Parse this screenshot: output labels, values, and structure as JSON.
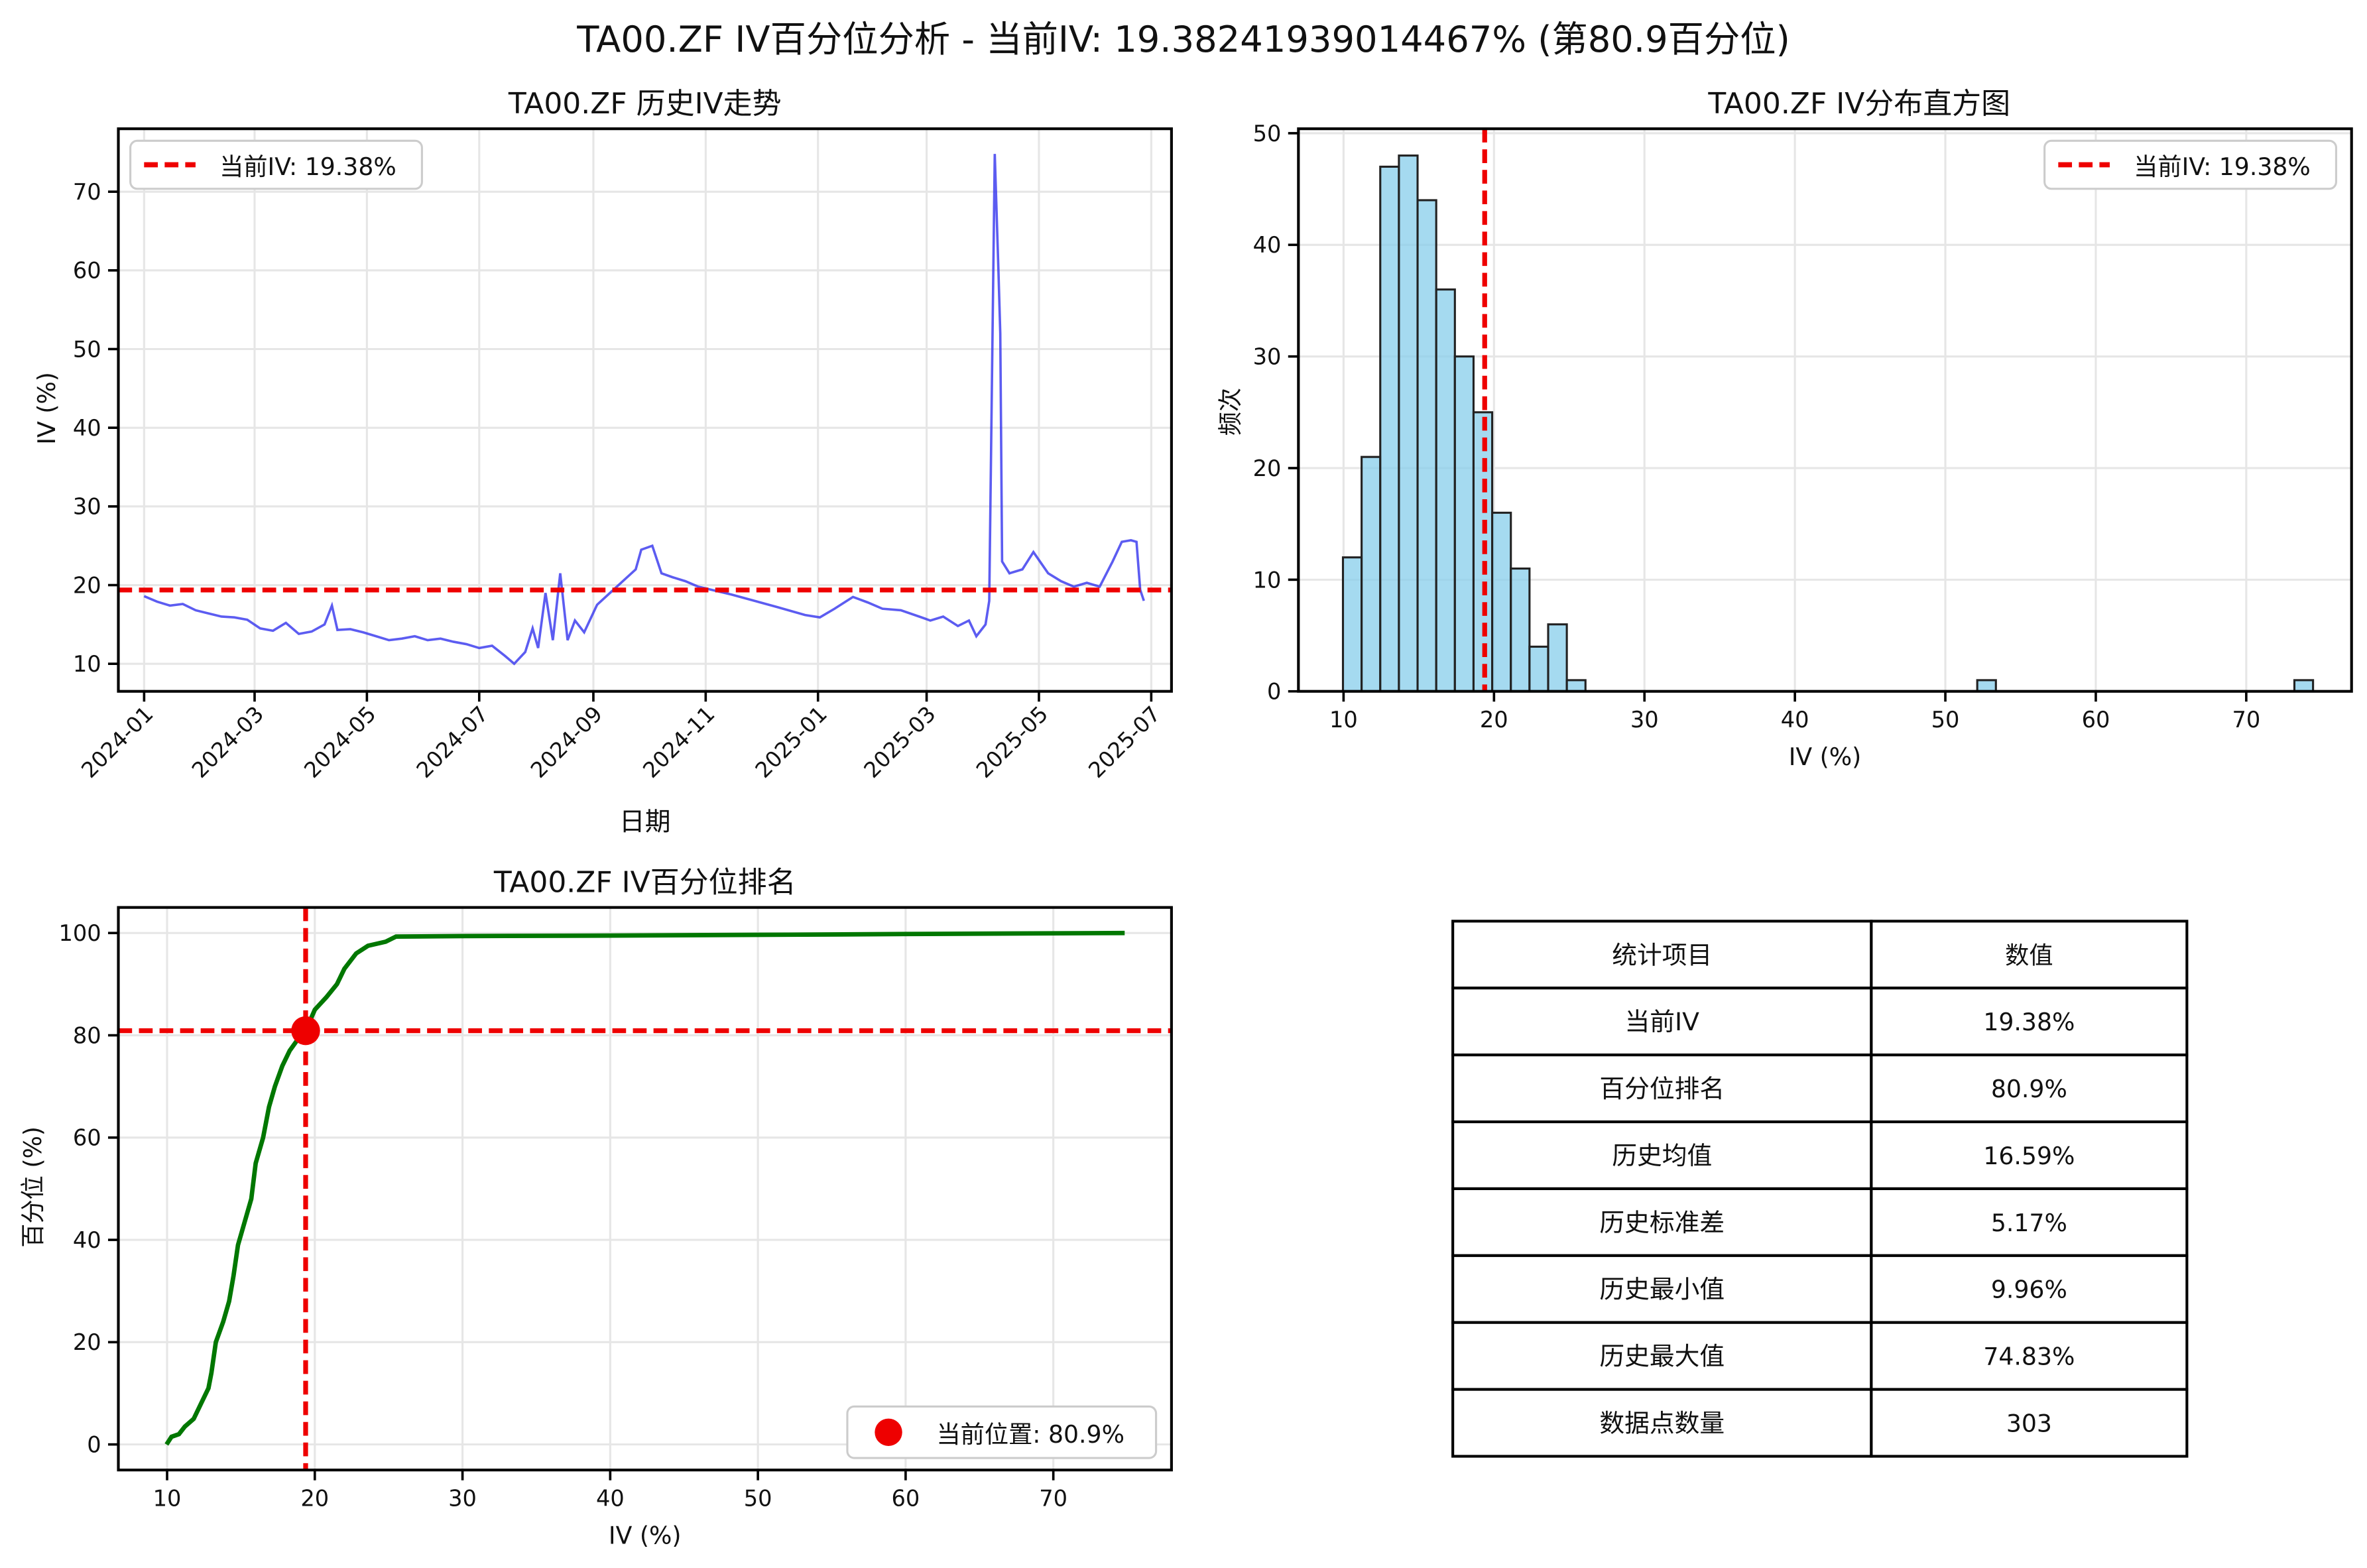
{
  "suptitle": "TA00.ZF IV百分位分析 - 当前IV: 19.38241939014467% (第80.9百分位)",
  "colors": {
    "line": "#3333ee",
    "current": "#ee0000",
    "cdf": "#007700",
    "hist": "#87ceeb",
    "grid": "#e6e6e6"
  },
  "chart_data": [
    {
      "type": "line",
      "title": "TA00.ZF 历史IV走势",
      "xlabel": "日期",
      "ylabel": "IV (%)",
      "x_ticks": [
        "2024-01",
        "2024-03",
        "2024-05",
        "2024-07",
        "2024-09",
        "2024-11",
        "2025-01",
        "2025-03",
        "2025-05",
        "2025-07"
      ],
      "y_ticks": [
        10,
        20,
        30,
        40,
        50,
        60,
        70
      ],
      "ylim": [
        6.5,
        78
      ],
      "grid": true,
      "legend": {
        "position": "top-left",
        "entries": [
          "当前IV: 19.38%"
        ]
      },
      "current_iv": 19.38,
      "series": [
        {
          "points": [
            [
              "2024-01-01",
              18.6
            ],
            [
              "2024-01-08",
              17.9
            ],
            [
              "2024-01-15",
              17.4
            ],
            [
              "2024-01-22",
              17.6
            ],
            [
              "2024-01-29",
              16.8
            ],
            [
              "2024-02-05",
              16.4
            ],
            [
              "2024-02-12",
              16.0
            ],
            [
              "2024-02-19",
              15.9
            ],
            [
              "2024-02-26",
              15.6
            ],
            [
              "2024-03-04",
              14.5
            ],
            [
              "2024-03-11",
              14.2
            ],
            [
              "2024-03-18",
              15.2
            ],
            [
              "2024-03-25",
              13.8
            ],
            [
              "2024-04-01",
              14.1
            ],
            [
              "2024-04-08",
              15.0
            ],
            [
              "2024-04-12",
              17.4
            ],
            [
              "2024-04-15",
              14.3
            ],
            [
              "2024-04-22",
              14.4
            ],
            [
              "2024-04-29",
              14.0
            ],
            [
              "2024-05-06",
              13.5
            ],
            [
              "2024-05-13",
              13.0
            ],
            [
              "2024-05-20",
              13.2
            ],
            [
              "2024-05-27",
              13.5
            ],
            [
              "2024-06-03",
              13.0
            ],
            [
              "2024-06-10",
              13.2
            ],
            [
              "2024-06-17",
              12.8
            ],
            [
              "2024-06-24",
              12.5
            ],
            [
              "2024-07-01",
              12.0
            ],
            [
              "2024-07-08",
              12.3
            ],
            [
              "2024-07-15",
              11.0
            ],
            [
              "2024-07-20",
              10.0
            ],
            [
              "2024-07-26",
              11.5
            ],
            [
              "2024-07-30",
              14.5
            ],
            [
              "2024-08-02",
              12.0
            ],
            [
              "2024-08-06",
              19.0
            ],
            [
              "2024-08-10",
              13.0
            ],
            [
              "2024-08-14",
              21.5
            ],
            [
              "2024-08-18",
              13.0
            ],
            [
              "2024-08-22",
              15.5
            ],
            [
              "2024-08-27",
              14.0
            ],
            [
              "2024-09-03",
              17.5
            ],
            [
              "2024-09-10",
              19.0
            ],
            [
              "2024-09-17",
              20.5
            ],
            [
              "2024-09-24",
              22.0
            ],
            [
              "2024-09-27",
              24.5
            ],
            [
              "2024-10-03",
              25.0
            ],
            [
              "2024-10-08",
              21.5
            ],
            [
              "2024-10-14",
              21.0
            ],
            [
              "2024-10-21",
              20.5
            ],
            [
              "2024-10-28",
              19.8
            ],
            [
              "2024-11-15",
              18.8
            ],
            [
              "2024-12-10",
              17.2
            ],
            [
              "2024-12-25",
              16.2
            ],
            [
              "2025-01-02",
              15.9
            ],
            [
              "2025-01-10",
              17.0
            ],
            [
              "2025-01-20",
              18.5
            ],
            [
              "2025-01-28",
              17.8
            ],
            [
              "2025-02-05",
              17.0
            ],
            [
              "2025-02-15",
              16.8
            ],
            [
              "2025-02-25",
              16.0
            ],
            [
              "2025-03-03",
              15.5
            ],
            [
              "2025-03-10",
              16.0
            ],
            [
              "2025-03-18",
              14.8
            ],
            [
              "2025-03-24",
              15.5
            ],
            [
              "2025-03-28",
              13.5
            ],
            [
              "2025-04-02",
              15.0
            ],
            [
              "2025-04-04",
              18.0
            ],
            [
              "2025-04-07",
              74.8
            ],
            [
              "2025-04-09",
              60.0
            ],
            [
              "2025-04-10",
              52.0
            ],
            [
              "2025-04-11",
              23.0
            ],
            [
              "2025-04-15",
              21.5
            ],
            [
              "2025-04-22",
              22.0
            ],
            [
              "2025-04-28",
              24.2
            ],
            [
              "2025-05-06",
              21.5
            ],
            [
              "2025-05-13",
              20.5
            ],
            [
              "2025-05-20",
              19.8
            ],
            [
              "2025-05-27",
              20.3
            ],
            [
              "2025-06-03",
              19.8
            ],
            [
              "2025-06-10",
              23.0
            ],
            [
              "2025-06-15",
              25.5
            ],
            [
              "2025-06-20",
              25.7
            ],
            [
              "2025-06-23",
              25.5
            ],
            [
              "2025-06-25",
              19.4
            ],
            [
              "2025-06-27",
              18.0
            ]
          ]
        }
      ]
    },
    {
      "type": "bar",
      "title": "TA00.ZF IV分布直方图",
      "xlabel": "IV (%)",
      "ylabel": "频次",
      "x_ticks": [
        10,
        20,
        30,
        40,
        50,
        60,
        70
      ],
      "y_ticks": [
        0,
        10,
        20,
        30,
        40,
        50
      ],
      "xlim": [
        7,
        77
      ],
      "ylim": [
        0,
        50.4
      ],
      "grid": true,
      "legend": {
        "position": "top-right",
        "entries": [
          "当前IV: 19.38%"
        ]
      },
      "current_iv": 19.38,
      "bin_start": 9.96,
      "bin_width": 1.24,
      "values": [
        12,
        21,
        47,
        48,
        44,
        36,
        30,
        25,
        16,
        11,
        4,
        6,
        1,
        0,
        0,
        0,
        0,
        0,
        0,
        0,
        0,
        0,
        0,
        0,
        0,
        0,
        0,
        0,
        0,
        0,
        0,
        0,
        0,
        0,
        1,
        0,
        0,
        0,
        0,
        0,
        0,
        0,
        0,
        0,
        0,
        0,
        0,
        0,
        0,
        0,
        0,
        1
      ]
    },
    {
      "type": "line",
      "title": "TA00.ZF IV百分位排名",
      "xlabel": "IV (%)",
      "ylabel": "百分位 (%)",
      "x_ticks": [
        10,
        20,
        30,
        40,
        50,
        60,
        70
      ],
      "y_ticks": [
        0,
        20,
        40,
        60,
        80,
        100
      ],
      "xlim": [
        6.7,
        78
      ],
      "ylim": [
        -5,
        105
      ],
      "grid": true,
      "legend": {
        "position": "bottom-right",
        "entries": [
          "当前位置: 80.9%"
        ]
      },
      "current_point": {
        "x": 19.38,
        "y": 80.9
      },
      "series": [
        {
          "points": [
            [
              9.96,
              0
            ],
            [
              10.3,
              1.5
            ],
            [
              10.8,
              2
            ],
            [
              11.2,
              3.5
            ],
            [
              11.8,
              5
            ],
            [
              12.3,
              8
            ],
            [
              12.8,
              11
            ],
            [
              13.0,
              14
            ],
            [
              13.3,
              20
            ],
            [
              13.8,
              24
            ],
            [
              14.2,
              28
            ],
            [
              14.5,
              33
            ],
            [
              14.8,
              39
            ],
            [
              15.3,
              44
            ],
            [
              15.7,
              48
            ],
            [
              16.0,
              55
            ],
            [
              16.5,
              60
            ],
            [
              16.9,
              66
            ],
            [
              17.3,
              70
            ],
            [
              17.8,
              74
            ],
            [
              18.3,
              77
            ],
            [
              18.8,
              79
            ],
            [
              19.38,
              80.9
            ],
            [
              20.0,
              85
            ],
            [
              20.8,
              87.5
            ],
            [
              21.5,
              90
            ],
            [
              22.0,
              93
            ],
            [
              22.8,
              96
            ],
            [
              23.6,
              97.5
            ],
            [
              24.8,
              98.3
            ],
            [
              25.5,
              99.3
            ],
            [
              30,
              99.4
            ],
            [
              40,
              99.5
            ],
            [
              52.0,
              99.67
            ],
            [
              60,
              99.8
            ],
            [
              74.83,
              100
            ]
          ]
        }
      ]
    },
    {
      "type": "table",
      "headers": [
        "统计项目",
        "数值"
      ],
      "rows": [
        [
          "当前IV",
          "19.38%"
        ],
        [
          "百分位排名",
          "80.9%"
        ],
        [
          "历史均值",
          "16.59%"
        ],
        [
          "历史标准差",
          "5.17%"
        ],
        [
          "历史最小值",
          "9.96%"
        ],
        [
          "历史最大值",
          "74.83%"
        ],
        [
          "数据点数量",
          "303"
        ]
      ]
    }
  ]
}
